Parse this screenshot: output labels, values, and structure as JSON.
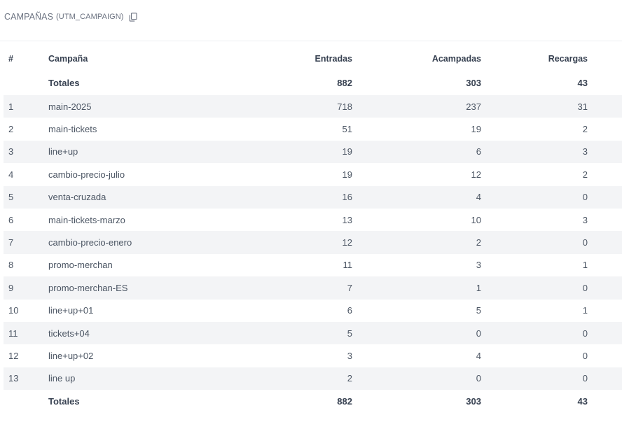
{
  "section": {
    "title": "CAMPAÑAS",
    "subtitle": "(UTM_CAMPAIGN)",
    "copy_icon": "copy-icon"
  },
  "table": {
    "headers": {
      "index": "#",
      "campaign": "Campaña",
      "entradas": "Entradas",
      "acampadas": "Acampadas",
      "recargas": "Recargas"
    },
    "totals": {
      "label": "Totales",
      "entradas": "882",
      "acampadas": "303",
      "recargas": "43"
    },
    "rows": [
      {
        "idx": "1",
        "campaign": "main-2025",
        "entradas": "718",
        "acampadas": "237",
        "recargas": "31"
      },
      {
        "idx": "2",
        "campaign": "main-tickets",
        "entradas": "51",
        "acampadas": "19",
        "recargas": "2"
      },
      {
        "idx": "3",
        "campaign": "line+up",
        "entradas": "19",
        "acampadas": "6",
        "recargas": "3"
      },
      {
        "idx": "4",
        "campaign": "cambio-precio-julio",
        "entradas": "19",
        "acampadas": "12",
        "recargas": "2"
      },
      {
        "idx": "5",
        "campaign": "venta-cruzada",
        "entradas": "16",
        "acampadas": "4",
        "recargas": "0"
      },
      {
        "idx": "6",
        "campaign": "main-tickets-marzo",
        "entradas": "13",
        "acampadas": "10",
        "recargas": "3"
      },
      {
        "idx": "7",
        "campaign": "cambio-precio-enero",
        "entradas": "12",
        "acampadas": "2",
        "recargas": "0"
      },
      {
        "idx": "8",
        "campaign": "promo-merchan",
        "entradas": "11",
        "acampadas": "3",
        "recargas": "1"
      },
      {
        "idx": "9",
        "campaign": "promo-merchan-ES",
        "entradas": "7",
        "acampadas": "1",
        "recargas": "0"
      },
      {
        "idx": "10",
        "campaign": "line+up+01",
        "entradas": "6",
        "acampadas": "5",
        "recargas": "1"
      },
      {
        "idx": "11",
        "campaign": "tickets+04",
        "entradas": "5",
        "acampadas": "0",
        "recargas": "0"
      },
      {
        "idx": "12",
        "campaign": "line+up+02",
        "entradas": "3",
        "acampadas": "4",
        "recargas": "0"
      },
      {
        "idx": "13",
        "campaign": "line up",
        "entradas": "2",
        "acampadas": "0",
        "recargas": "0"
      }
    ],
    "footer": {
      "label": "Totales",
      "entradas": "882",
      "acampadas": "303",
      "recargas": "43"
    }
  }
}
